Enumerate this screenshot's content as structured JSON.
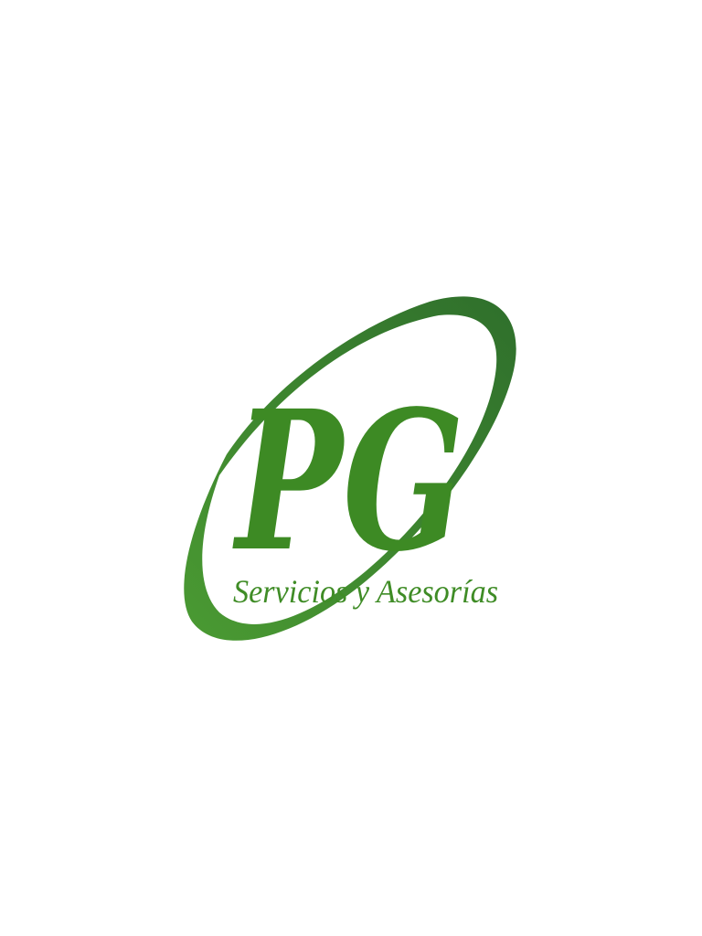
{
  "logo": {
    "monogram": "PG",
    "tagline": "Servicios y Asesorías",
    "colors": {
      "swoosh_dark": "#2f6f2c",
      "swoosh_light": "#4a9a32",
      "letters": "#3d8a24",
      "tagline": "#3f8c26",
      "background": "#ffffff"
    }
  }
}
